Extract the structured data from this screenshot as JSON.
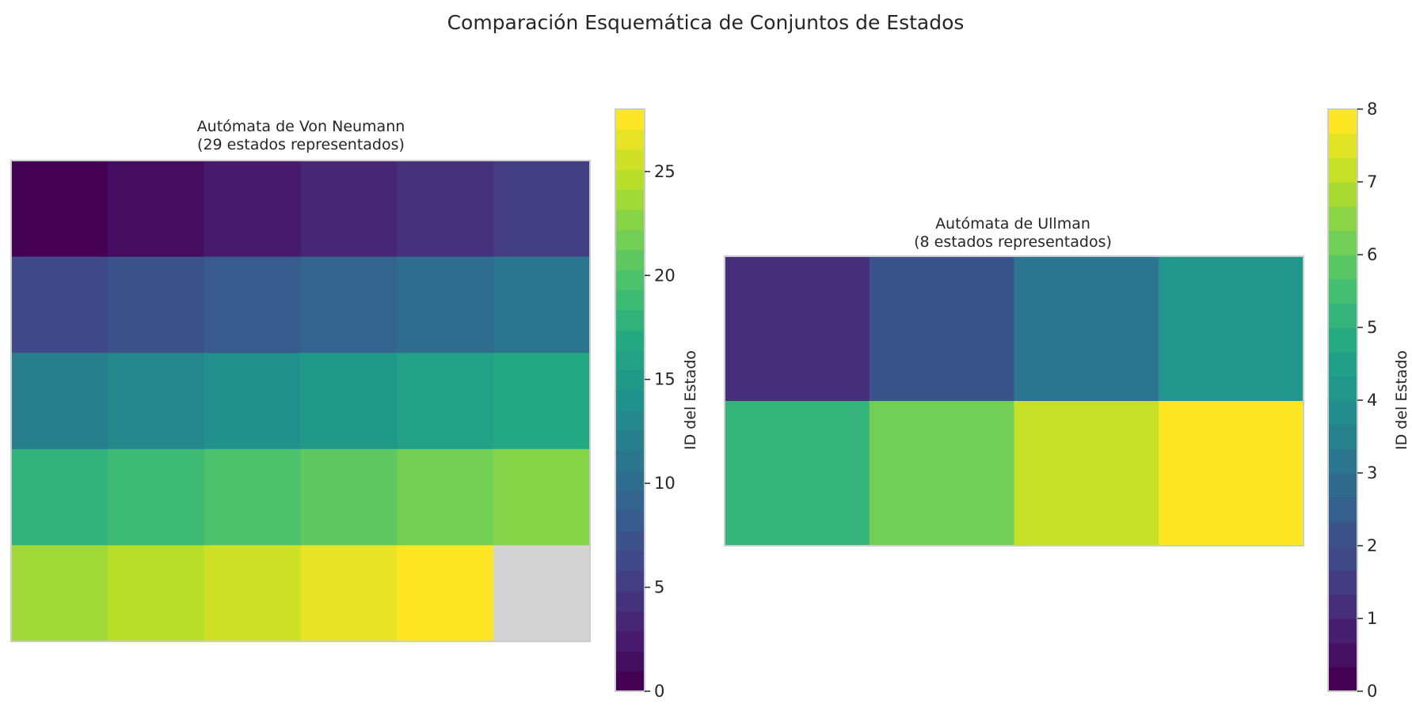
{
  "title": "Comparación Esquemática de Conjuntos de Estados",
  "colormap": "viridis",
  "empty_cell_color": "#d3d3d3",
  "chart_data": [
    {
      "type": "heatmap",
      "title_line1": "Autómata de Von Neumann",
      "title_line2": "(29 estados representados)",
      "rows": 5,
      "cols": 6,
      "values": [
        [
          0,
          1,
          2,
          3,
          4,
          5
        ],
        [
          6,
          7,
          8,
          9,
          10,
          11
        ],
        [
          12,
          13,
          14,
          15,
          16,
          17
        ],
        [
          18,
          19,
          20,
          21,
          22,
          23
        ],
        [
          24,
          25,
          26,
          27,
          28,
          null
        ]
      ],
      "colorbar": {
        "label": "ID del Estado",
        "min": 0,
        "max": 28,
        "levels": 29,
        "ticks": [
          0,
          5,
          10,
          15,
          20,
          25
        ]
      }
    },
    {
      "type": "heatmap",
      "title_line1": "Autómata de Ullman",
      "title_line2": "(8 estados representados)",
      "rows": 2,
      "cols": 4,
      "values": [
        [
          1,
          2,
          3,
          4
        ],
        [
          5,
          6,
          7,
          8
        ]
      ],
      "colorbar": {
        "label": "ID del Estado",
        "min": 0,
        "max": 8,
        "levels": 24,
        "ticks": [
          0,
          1,
          2,
          3,
          4,
          5,
          6,
          7,
          8
        ]
      }
    }
  ]
}
